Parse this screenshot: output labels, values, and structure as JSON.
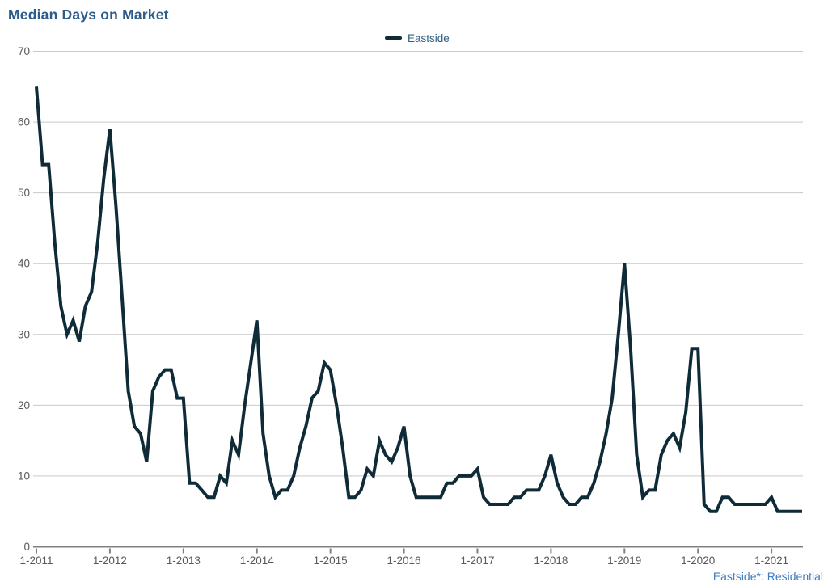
{
  "header": {
    "title": "Median Days on Market"
  },
  "footer": {
    "note": "Eastside*: Residential"
  },
  "colors": {
    "title": "#2b5c8a",
    "legend_text": "#2e5e80",
    "series_line": "#0f2b38",
    "gridline": "#c9c9c9",
    "axis_line": "#808080",
    "tick_text": "#595959",
    "footnote_text": "#3f7dbe",
    "background": "#ffffff"
  },
  "chart_data": {
    "type": "line",
    "title": "Median Days on Market",
    "xlabel": "",
    "ylabel": "",
    "ylim": [
      0,
      70
    ],
    "grid": "horizontal",
    "legend_position": "top-center",
    "x_frequency": "monthly",
    "x_start_label": "1-2011",
    "x_end_label": "6-2021",
    "x_tick_labels": [
      "1-2011",
      "1-2012",
      "1-2013",
      "1-2014",
      "1-2015",
      "1-2016",
      "1-2017",
      "1-2018",
      "1-2019",
      "1-2020",
      "1-2021"
    ],
    "y_tick_labels": [
      "0",
      "10",
      "20",
      "30",
      "40",
      "50",
      "60",
      "70"
    ],
    "y_ticks": [
      0,
      10,
      20,
      30,
      40,
      50,
      60,
      70
    ],
    "series": [
      {
        "name": "Eastside",
        "color": "#0f2b38",
        "values": [
          65,
          54,
          54,
          43,
          34,
          30,
          32,
          29,
          34,
          36,
          43,
          52,
          59,
          48,
          35,
          22,
          17,
          16,
          12,
          22,
          24,
          25,
          25,
          21,
          21,
          9,
          9,
          8,
          7,
          7,
          10,
          9,
          15,
          13,
          20,
          26,
          32,
          16,
          10,
          7,
          8,
          8,
          10,
          14,
          17,
          21,
          22,
          26,
          25,
          20,
          14,
          7,
          7,
          8,
          11,
          10,
          15,
          13,
          12,
          14,
          17,
          10,
          7,
          7,
          7,
          7,
          7,
          9,
          9,
          10,
          10,
          10,
          11,
          7,
          6,
          6,
          6,
          6,
          7,
          7,
          8,
          8,
          8,
          10,
          13,
          9,
          7,
          6,
          6,
          7,
          7,
          9,
          12,
          16,
          21,
          30,
          40,
          28,
          13,
          7,
          8,
          8,
          13,
          15,
          16,
          14,
          19,
          28,
          28,
          6,
          5,
          5,
          7,
          7,
          6,
          6,
          6,
          6,
          6,
          6,
          7,
          5,
          5,
          5,
          5,
          5
        ]
      }
    ]
  }
}
